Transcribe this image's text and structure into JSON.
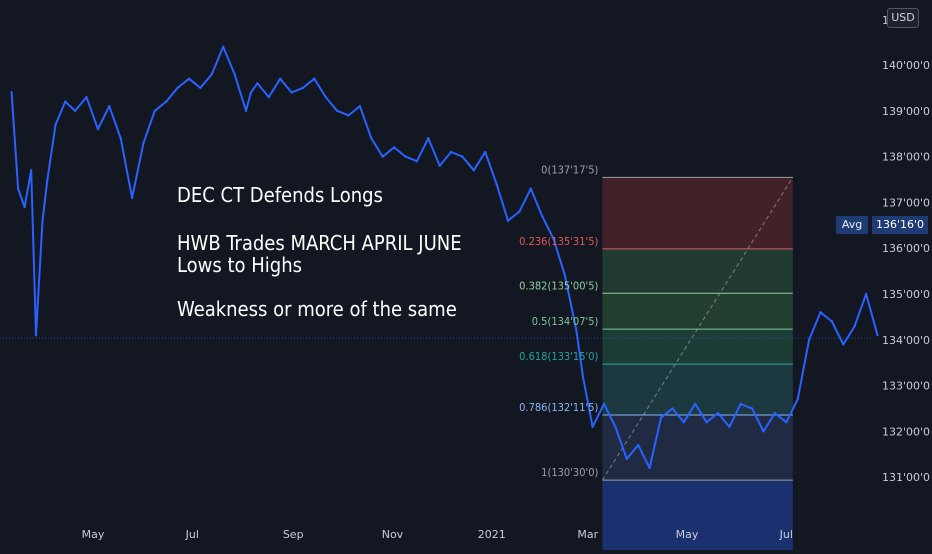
{
  "currency": "USD",
  "axis_top_digit": "1",
  "avg": {
    "label": "Avg",
    "value": "136'16'0"
  },
  "annotations": {
    "line1": "DEC CT Defends Longs",
    "line2": "HWB Trades MARCH APRIL JUNE\nLows to Highs",
    "line3": "Weakness or more of the same"
  },
  "colors": {
    "background": "#131722",
    "price_line": "#2962ff",
    "grid": "#1f2430",
    "avg_line": "#2a4a9c"
  },
  "fib_labels": [
    {
      "text": "0(137'17'5)",
      "color": "#9aa0ab"
    },
    {
      "text": "0.236(135'31'5)",
      "color": "#e05a5a"
    },
    {
      "text": "0.382(135'00'5)",
      "color": "#8fd19e"
    },
    {
      "text": "0.5(134'07'5)",
      "color": "#7fc99a"
    },
    {
      "text": "0.618(133'15'0)",
      "color": "#26a69a"
    },
    {
      "text": "0.786(132'11'5)",
      "color": "#8ab4f8"
    },
    {
      "text": "1(130'30'0)",
      "color": "#9aa0ab"
    }
  ],
  "chart_data": {
    "type": "line",
    "title": "",
    "xlabel": "",
    "ylabel": "",
    "y_axis_ticks": [
      "140'00'0",
      "139'00'0",
      "138'00'0",
      "137'00'0",
      "136'00'0",
      "135'00'0",
      "134'00'0",
      "133'00'0",
      "132'00'0",
      "131'00'0"
    ],
    "x_axis_ticks": [
      "May",
      "Jul",
      "Sep",
      "Nov",
      "2021",
      "Mar",
      "May",
      "Jul"
    ],
    "ylim": [
      130.45,
      141.0
    ],
    "grid": false,
    "avg_value": 136.5,
    "series": [
      {
        "x": [
          "2020-03-12",
          "2020-03-16",
          "2020-03-20",
          "2020-03-24",
          "2020-03-27",
          "2020-03-31",
          "2020-04-03",
          "2020-04-08",
          "2020-04-14",
          "2020-04-20",
          "2020-04-27",
          "2020-05-04",
          "2020-05-11",
          "2020-05-18",
          "2020-05-25",
          "2020-06-01",
          "2020-06-08",
          "2020-06-15",
          "2020-06-22",
          "2020-06-29",
          "2020-07-06",
          "2020-07-13",
          "2020-07-20",
          "2020-07-27",
          "2020-08-03",
          "2020-08-06",
          "2020-08-10",
          "2020-08-17",
          "2020-08-24",
          "2020-08-31",
          "2020-09-07",
          "2020-09-14",
          "2020-09-21",
          "2020-09-28",
          "2020-10-05",
          "2020-10-12",
          "2020-10-19",
          "2020-10-26",
          "2020-11-02",
          "2020-11-09",
          "2020-11-16",
          "2020-11-23",
          "2020-11-30",
          "2020-12-07",
          "2020-12-14",
          "2020-12-21",
          "2020-12-28",
          "2021-01-04",
          "2021-01-11",
          "2021-01-18",
          "2021-01-25",
          "2021-02-01",
          "2021-02-08",
          "2021-02-15",
          "2021-02-22",
          "2021-02-26",
          "2021-03-04",
          "2021-03-11",
          "2021-03-18",
          "2021-03-25",
          "2021-04-01",
          "2021-04-08",
          "2021-04-15",
          "2021-04-22",
          "2021-04-29",
          "2021-05-06",
          "2021-05-13",
          "2021-05-20",
          "2021-05-27",
          "2021-06-03",
          "2021-06-10",
          "2021-06-17",
          "2021-06-24",
          "2021-07-01",
          "2021-07-08",
          "2021-07-15",
          "2021-07-22",
          "2021-07-29",
          "2021-08-05",
          "2021-08-12",
          "2021-08-19",
          "2021-08-26"
        ],
        "values": [
          139.4,
          137.3,
          136.9,
          137.7,
          134.1,
          136.6,
          137.5,
          138.7,
          139.2,
          139.0,
          139.3,
          138.6,
          139.1,
          138.4,
          137.1,
          138.3,
          139.0,
          139.2,
          139.5,
          139.7,
          139.5,
          139.8,
          140.4,
          139.8,
          139.0,
          139.4,
          139.6,
          139.3,
          139.7,
          139.4,
          139.5,
          139.7,
          139.3,
          139.0,
          138.9,
          139.1,
          138.4,
          138.0,
          138.2,
          138.0,
          137.9,
          138.4,
          137.8,
          138.1,
          138.0,
          137.7,
          138.1,
          137.4,
          136.6,
          136.8,
          137.3,
          136.7,
          136.2,
          135.4,
          134.2,
          133.2,
          132.1,
          132.6,
          132.1,
          131.4,
          131.7,
          131.2,
          132.3,
          132.5,
          132.2,
          132.6,
          132.2,
          132.4,
          132.1,
          132.6,
          132.5,
          132.0,
          132.4,
          132.2,
          132.7,
          134.0,
          134.6,
          134.4,
          133.9,
          134.3,
          135.0,
          134.1
        ]
      }
    ],
    "fib_levels": [
      {
        "ratio": 0,
        "price": 137.5469
      },
      {
        "ratio": 0.236,
        "price": 135.9844
      },
      {
        "ratio": 0.382,
        "price": 135.0156
      },
      {
        "ratio": 0.5,
        "price": 134.2344
      },
      {
        "ratio": 0.618,
        "price": 133.4688
      },
      {
        "ratio": 0.786,
        "price": 132.3594
      },
      {
        "ratio": 1,
        "price": 130.9375
      }
    ]
  }
}
